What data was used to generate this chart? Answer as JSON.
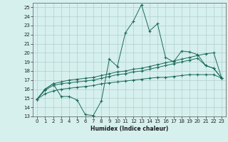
{
  "xlabel": "Humidex (Indice chaleur)",
  "x_values": [
    0,
    1,
    2,
    3,
    4,
    5,
    6,
    7,
    8,
    9,
    10,
    11,
    12,
    13,
    14,
    15,
    16,
    17,
    18,
    19,
    20,
    21,
    22,
    23
  ],
  "line1": [
    14.9,
    16.0,
    16.6,
    15.2,
    15.2,
    14.8,
    13.2,
    13.1,
    14.7,
    19.3,
    18.5,
    22.2,
    23.5,
    25.3,
    22.4,
    23.2,
    19.5,
    19.0,
    20.2,
    20.1,
    19.8,
    18.6,
    18.3,
    17.2
  ],
  "line2": [
    14.9,
    16.0,
    16.6,
    16.8,
    17.0,
    17.1,
    17.2,
    17.3,
    17.5,
    17.7,
    17.9,
    18.0,
    18.2,
    18.3,
    18.5,
    18.7,
    18.9,
    19.1,
    19.3,
    19.5,
    19.7,
    19.9,
    20.0,
    17.2
  ],
  "line3": [
    14.9,
    15.9,
    16.4,
    16.6,
    16.7,
    16.8,
    16.9,
    17.0,
    17.2,
    17.4,
    17.6,
    17.7,
    17.9,
    18.0,
    18.2,
    18.4,
    18.6,
    18.8,
    19.0,
    19.2,
    19.4,
    18.6,
    18.3,
    17.2
  ],
  "line4": [
    14.9,
    15.5,
    15.8,
    16.0,
    16.1,
    16.2,
    16.3,
    16.4,
    16.6,
    16.7,
    16.8,
    16.9,
    17.0,
    17.1,
    17.2,
    17.3,
    17.3,
    17.4,
    17.5,
    17.6,
    17.6,
    17.6,
    17.6,
    17.2
  ],
  "line_color": "#1a6b5a",
  "bg_color": "#d6f0ee",
  "grid_color": "#b0cece",
  "ylim": [
    13,
    25.5
  ],
  "yticks": [
    13,
    14,
    15,
    16,
    17,
    18,
    19,
    20,
    21,
    22,
    23,
    24,
    25
  ],
  "xlim": [
    -0.5,
    23.5
  ],
  "xticks": [
    0,
    1,
    2,
    3,
    4,
    5,
    6,
    7,
    8,
    9,
    10,
    11,
    12,
    13,
    14,
    15,
    16,
    17,
    18,
    19,
    20,
    21,
    22,
    23
  ]
}
